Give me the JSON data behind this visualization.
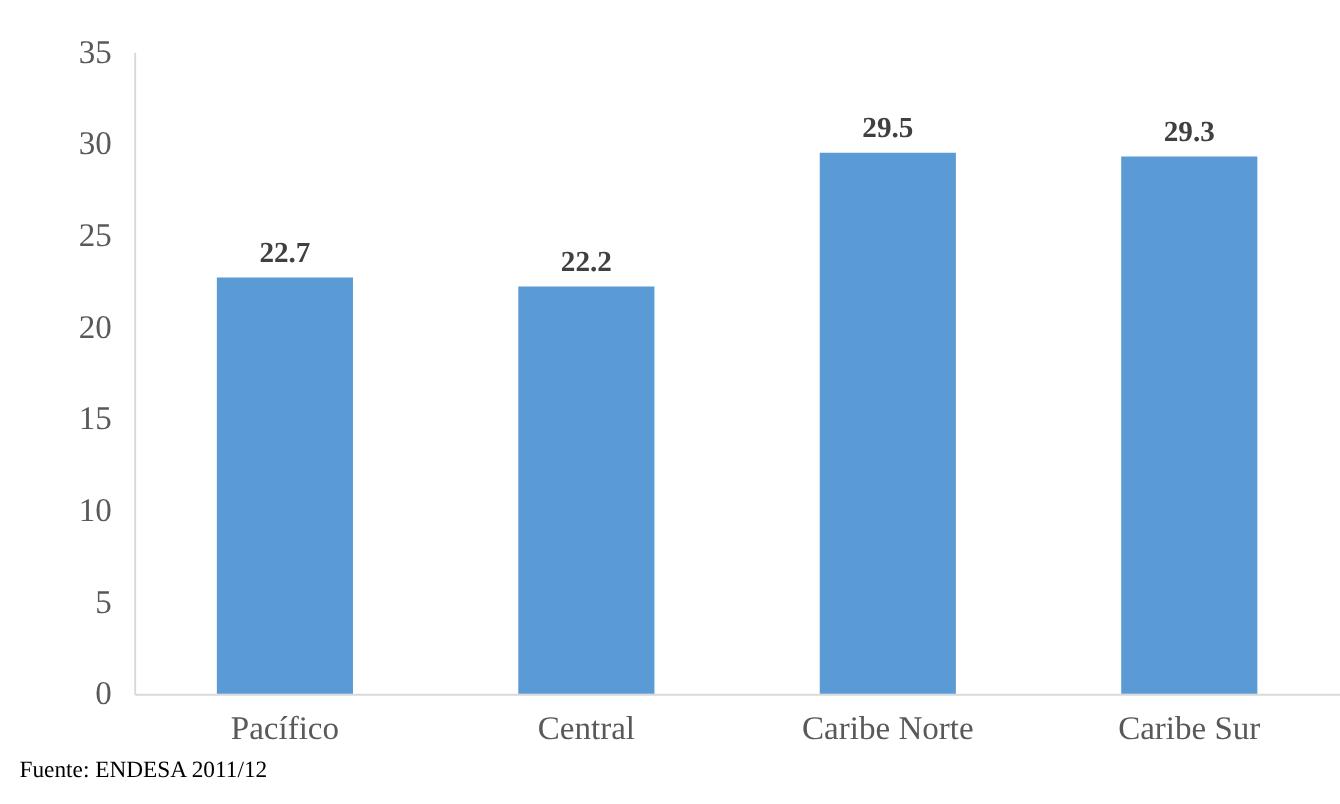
{
  "chart_data": {
    "type": "bar",
    "categories": [
      "Pacífico",
      "Central",
      "Caribe Norte",
      "Caribe Sur"
    ],
    "values": [
      22.7,
      22.2,
      29.5,
      29.3
    ],
    "color": "#5b9bd5",
    "ylim": [
      0,
      35
    ],
    "yticks": [
      0,
      5,
      10,
      15,
      20,
      25,
      30,
      35
    ],
    "grid": false,
    "data_labels": true,
    "annotations": [
      "Fuente: ENDESA 2011/12"
    ]
  }
}
